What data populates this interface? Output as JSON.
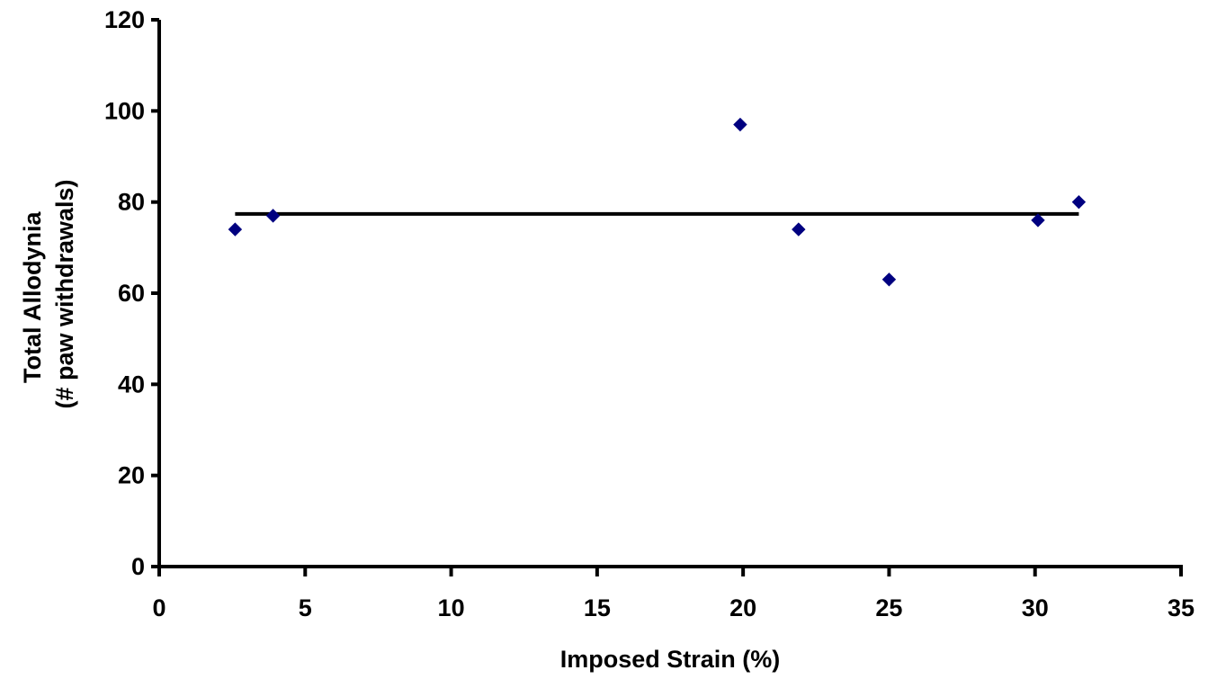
{
  "chart_data": {
    "type": "scatter",
    "title": "",
    "xlabel": "Imposed Strain (%)",
    "ylabel_lines": [
      "Total Allodynia",
      "(# paw withdrawals)"
    ],
    "xlim": [
      0,
      35
    ],
    "ylim": [
      0,
      120
    ],
    "x_ticks": [
      0,
      5,
      10,
      15,
      20,
      25,
      30,
      35
    ],
    "y_ticks": [
      0,
      20,
      40,
      60,
      80,
      100,
      120
    ],
    "x_tick_labels": [
      "0",
      "5",
      "10",
      "15",
      "20",
      "25",
      "30",
      "35"
    ],
    "y_tick_labels": [
      "0",
      "20",
      "40",
      "60",
      "80",
      "100",
      "120"
    ],
    "grid": false,
    "legend": "none",
    "series": [
      {
        "marker": "diamond",
        "color": "#000080",
        "points": [
          {
            "x": 2.6,
            "y": 74
          },
          {
            "x": 3.9,
            "y": 77
          },
          {
            "x": 19.9,
            "y": 97
          },
          {
            "x": 21.9,
            "y": 74
          },
          {
            "x": 25.0,
            "y": 63
          },
          {
            "x": 30.1,
            "y": 76
          },
          {
            "x": 31.5,
            "y": 80
          }
        ]
      }
    ],
    "trendline": {
      "color": "#000000",
      "x": [
        2.6,
        31.5
      ],
      "y": [
        77.4,
        77.4
      ]
    }
  }
}
